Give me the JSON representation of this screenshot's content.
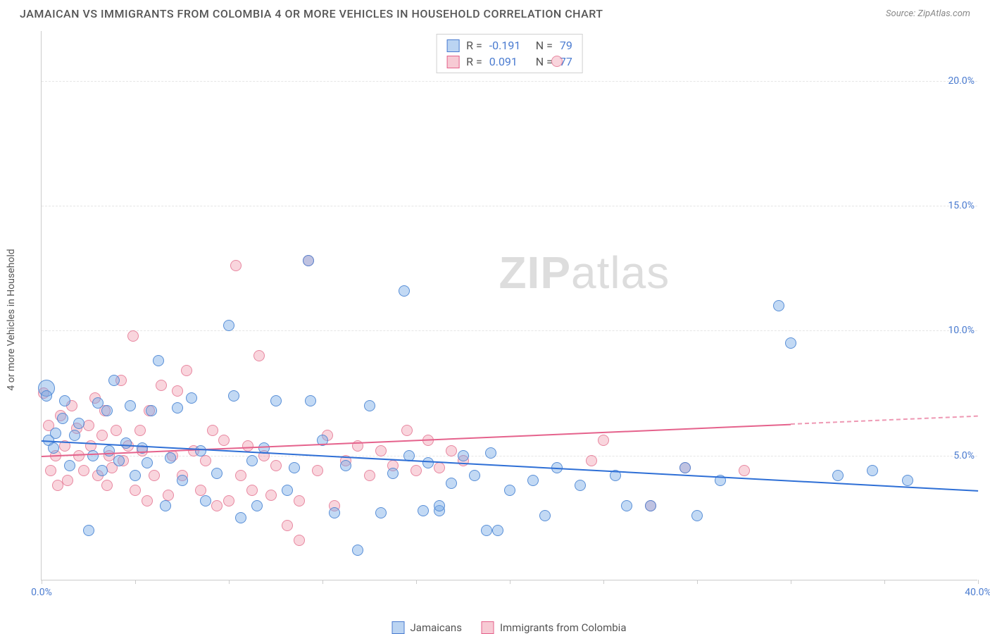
{
  "title": "JAMAICAN VS IMMIGRANTS FROM COLOMBIA 4 OR MORE VEHICLES IN HOUSEHOLD CORRELATION CHART",
  "source": "Source: ZipAtlas.com",
  "ylabel": "4 or more Vehicles in Household",
  "watermark_a": "ZIP",
  "watermark_b": "atlas",
  "chart": {
    "type": "scatter",
    "background_color": "#ffffff",
    "grid_color": "#e5e5e5",
    "xlim": [
      0,
      40
    ],
    "ylim": [
      0,
      22
    ],
    "x_ticks": [
      0,
      4,
      8,
      12,
      16,
      20,
      24,
      28,
      32,
      36,
      40
    ],
    "x_tick_labels": {
      "0": "0.0%",
      "40": "40.0%"
    },
    "y_ticks": [
      5,
      10,
      15,
      20
    ],
    "y_tick_labels": {
      "5": "5.0%",
      "10": "10.0%",
      "15": "15.0%",
      "20": "20.0%"
    },
    "label_color": "#4a7bd0",
    "label_fontsize": 14
  },
  "series": {
    "jamaicans": {
      "label": "Jamaicans",
      "color": "#78aae6",
      "border_color": "#4a7bd0",
      "trend_color": "#2e6fd6",
      "R": "-0.191",
      "N": "79",
      "trend": {
        "x1": 0,
        "y1": 5.6,
        "x2": 40,
        "y2": 3.6,
        "solid_until_x": 40
      },
      "points": [
        [
          0.2,
          7.7
        ],
        [
          0.2,
          7.4
        ],
        [
          0.3,
          5.6
        ],
        [
          0.5,
          5.3
        ],
        [
          0.6,
          5.9
        ],
        [
          0.9,
          6.5
        ],
        [
          1.0,
          7.2
        ],
        [
          1.2,
          4.6
        ],
        [
          1.4,
          5.8
        ],
        [
          1.6,
          6.3
        ],
        [
          2.0,
          2.0
        ],
        [
          2.2,
          5.0
        ],
        [
          2.4,
          7.1
        ],
        [
          2.6,
          4.4
        ],
        [
          2.8,
          6.8
        ],
        [
          2.9,
          5.2
        ],
        [
          3.1,
          8.0
        ],
        [
          3.3,
          4.8
        ],
        [
          3.6,
          5.5
        ],
        [
          3.8,
          7.0
        ],
        [
          4.0,
          4.2
        ],
        [
          4.3,
          5.3
        ],
        [
          4.5,
          4.7
        ],
        [
          4.7,
          6.8
        ],
        [
          5.0,
          8.8
        ],
        [
          5.3,
          3.0
        ],
        [
          5.5,
          4.9
        ],
        [
          5.8,
          6.9
        ],
        [
          6.0,
          4.0
        ],
        [
          6.4,
          7.3
        ],
        [
          6.8,
          5.2
        ],
        [
          7.0,
          3.2
        ],
        [
          7.5,
          4.3
        ],
        [
          8.0,
          10.2
        ],
        [
          8.2,
          7.4
        ],
        [
          8.5,
          2.5
        ],
        [
          9.0,
          4.8
        ],
        [
          9.2,
          3.0
        ],
        [
          9.5,
          5.3
        ],
        [
          10.0,
          7.2
        ],
        [
          10.5,
          3.6
        ],
        [
          10.8,
          4.5
        ],
        [
          11.4,
          12.8
        ],
        [
          11.5,
          7.2
        ],
        [
          12.0,
          5.6
        ],
        [
          12.5,
          2.7
        ],
        [
          13.0,
          4.6
        ],
        [
          13.5,
          1.2
        ],
        [
          14.0,
          7.0
        ],
        [
          14.5,
          2.7
        ],
        [
          15.0,
          4.3
        ],
        [
          15.5,
          11.6
        ],
        [
          15.7,
          5.0
        ],
        [
          16.3,
          2.8
        ],
        [
          16.5,
          4.7
        ],
        [
          17.0,
          2.8
        ],
        [
          17.0,
          3.0
        ],
        [
          17.5,
          3.9
        ],
        [
          18.0,
          5.0
        ],
        [
          18.5,
          4.2
        ],
        [
          19.0,
          2.0
        ],
        [
          19.2,
          5.1
        ],
        [
          19.5,
          2.0
        ],
        [
          20.0,
          3.6
        ],
        [
          21.0,
          4.0
        ],
        [
          21.5,
          2.6
        ],
        [
          22.0,
          4.5
        ],
        [
          23.0,
          3.8
        ],
        [
          24.5,
          4.2
        ],
        [
          25.0,
          3.0
        ],
        [
          26.0,
          3.0
        ],
        [
          27.5,
          4.5
        ],
        [
          28.0,
          2.6
        ],
        [
          29.0,
          4.0
        ],
        [
          31.5,
          11.0
        ],
        [
          32.0,
          9.5
        ],
        [
          34.0,
          4.2
        ],
        [
          35.5,
          4.4
        ],
        [
          37.0,
          4.0
        ]
      ]
    },
    "colombia": {
      "label": "Immigrants from Colombia",
      "color": "#f096aa",
      "border_color": "#e5628c",
      "trend_color": "#e5628c",
      "R": "0.091",
      "N": "77",
      "trend": {
        "x1": 0,
        "y1": 5.0,
        "x2": 40,
        "y2": 6.6,
        "solid_until_x": 32
      },
      "points": [
        [
          0.1,
          7.5
        ],
        [
          0.3,
          6.2
        ],
        [
          0.4,
          4.4
        ],
        [
          0.6,
          5.0
        ],
        [
          0.7,
          3.8
        ],
        [
          0.8,
          6.6
        ],
        [
          1.0,
          5.4
        ],
        [
          1.1,
          4.0
        ],
        [
          1.3,
          7.0
        ],
        [
          1.5,
          6.1
        ],
        [
          1.6,
          5.0
        ],
        [
          1.8,
          4.4
        ],
        [
          2.0,
          6.2
        ],
        [
          2.1,
          5.4
        ],
        [
          2.3,
          7.3
        ],
        [
          2.4,
          4.2
        ],
        [
          2.6,
          5.8
        ],
        [
          2.7,
          6.8
        ],
        [
          2.8,
          3.8
        ],
        [
          2.9,
          5.0
        ],
        [
          3.0,
          4.5
        ],
        [
          3.2,
          6.0
        ],
        [
          3.4,
          8.0
        ],
        [
          3.5,
          4.8
        ],
        [
          3.7,
          5.4
        ],
        [
          3.9,
          9.8
        ],
        [
          4.0,
          3.6
        ],
        [
          4.2,
          6.0
        ],
        [
          4.3,
          5.2
        ],
        [
          4.5,
          3.2
        ],
        [
          4.6,
          6.8
        ],
        [
          4.8,
          4.2
        ],
        [
          5.1,
          7.8
        ],
        [
          5.4,
          3.4
        ],
        [
          5.6,
          5.0
        ],
        [
          5.8,
          7.6
        ],
        [
          6.0,
          4.2
        ],
        [
          6.2,
          8.4
        ],
        [
          6.5,
          5.2
        ],
        [
          6.8,
          3.6
        ],
        [
          7.0,
          4.8
        ],
        [
          7.3,
          6.0
        ],
        [
          7.5,
          3.0
        ],
        [
          7.8,
          5.6
        ],
        [
          8.0,
          3.2
        ],
        [
          8.3,
          12.6
        ],
        [
          8.5,
          4.2
        ],
        [
          8.8,
          5.4
        ],
        [
          9.0,
          3.6
        ],
        [
          9.3,
          9.0
        ],
        [
          9.5,
          5.0
        ],
        [
          9.8,
          3.4
        ],
        [
          10.0,
          4.6
        ],
        [
          10.5,
          2.2
        ],
        [
          11.0,
          3.2
        ],
        [
          11.0,
          1.6
        ],
        [
          11.4,
          12.8
        ],
        [
          11.8,
          4.4
        ],
        [
          12.2,
          5.8
        ],
        [
          12.5,
          3.0
        ],
        [
          13.0,
          4.8
        ],
        [
          13.5,
          5.4
        ],
        [
          14.0,
          4.2
        ],
        [
          14.5,
          5.2
        ],
        [
          15.0,
          4.6
        ],
        [
          15.6,
          6.0
        ],
        [
          16.0,
          4.4
        ],
        [
          16.5,
          5.6
        ],
        [
          17.0,
          4.5
        ],
        [
          17.5,
          5.2
        ],
        [
          18.0,
          4.8
        ],
        [
          22.0,
          20.8
        ],
        [
          23.5,
          4.8
        ],
        [
          24.0,
          5.6
        ],
        [
          26.0,
          3.0
        ],
        [
          27.5,
          4.5
        ],
        [
          30.0,
          4.4
        ]
      ]
    }
  },
  "stats_legend": {
    "r_label": "R =",
    "n_label": "N ="
  },
  "bottom_legend": {
    "items": [
      "jamaicans",
      "colombia"
    ]
  }
}
